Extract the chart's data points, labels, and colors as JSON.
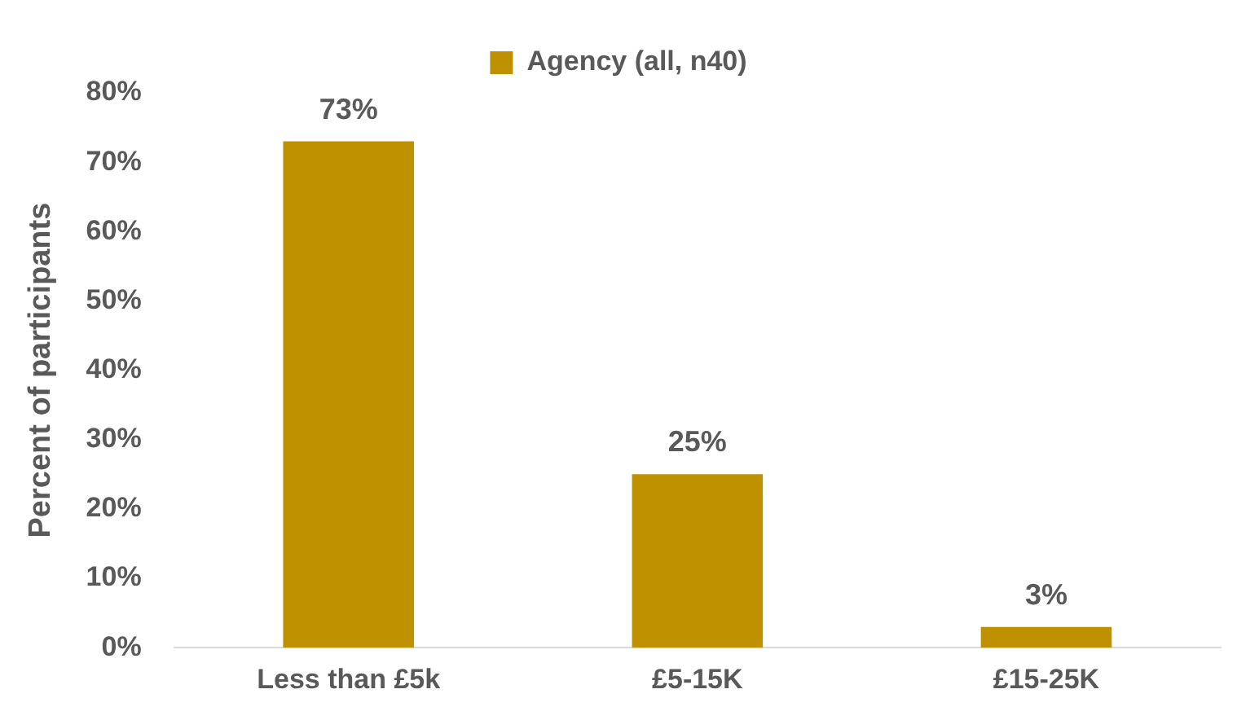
{
  "chart_data": {
    "type": "bar",
    "ylabel": "Percent of participants",
    "categories": [
      "Less than £5k",
      "£5-15K",
      "£15-25K"
    ],
    "series": [
      {
        "name": "Agency (all, n40)",
        "color": "#bf9000",
        "values": [
          73,
          25,
          3
        ],
        "value_labels": [
          "73%",
          "25%",
          "3%"
        ]
      }
    ],
    "ylim": [
      0,
      80
    ],
    "yticks": [
      {
        "value": 0,
        "label": "0%"
      },
      {
        "value": 10,
        "label": "10%"
      },
      {
        "value": 20,
        "label": "20%"
      },
      {
        "value": 30,
        "label": "30%"
      },
      {
        "value": 40,
        "label": "40%"
      },
      {
        "value": 50,
        "label": "50%"
      },
      {
        "value": 60,
        "label": "60%"
      },
      {
        "value": 70,
        "label": "70%"
      },
      {
        "value": 80,
        "label": "80%"
      }
    ],
    "grid": false,
    "legend": "top"
  }
}
